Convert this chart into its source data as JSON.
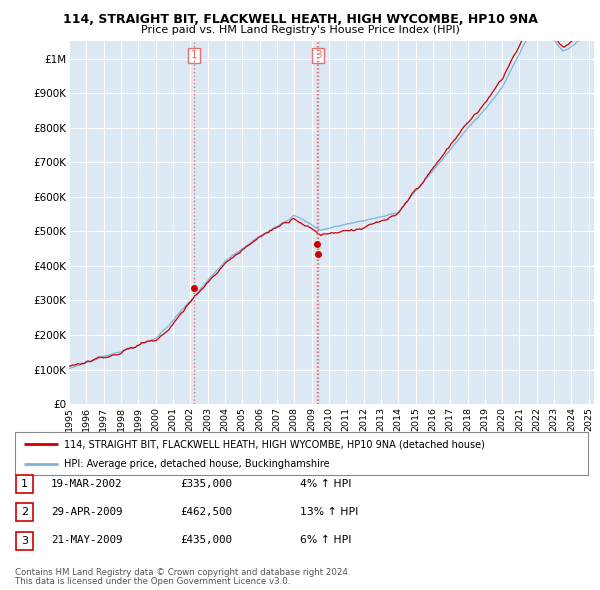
{
  "title": "114, STRAIGHT BIT, FLACKWELL HEATH, HIGH WYCOMBE, HP10 9NA",
  "subtitle": "Price paid vs. HM Land Registry's House Price Index (HPI)",
  "background_color": "#ffffff",
  "plot_bg_color": "#dce9f5",
  "grid_color": "#ffffff",
  "hpi_color": "#7eb3d8",
  "price_color": "#cc0000",
  "vline_color": "#e87070",
  "transactions": [
    {
      "num": 1,
      "date_label": "19-MAR-2002",
      "date_x": 2002.21,
      "price": 335000,
      "pct": "4%",
      "dir": "↑",
      "show_label": true
    },
    {
      "num": 2,
      "date_label": "29-APR-2009",
      "date_x": 2009.32,
      "price": 462500,
      "pct": "13%",
      "dir": "↑",
      "show_label": false
    },
    {
      "num": 3,
      "date_label": "21-MAY-2009",
      "date_x": 2009.38,
      "price": 435000,
      "pct": "6%",
      "dir": "↑",
      "show_label": true
    }
  ],
  "legend_property": "114, STRAIGHT BIT, FLACKWELL HEATH, HIGH WYCOMBE, HP10 9NA (detached house)",
  "legend_hpi": "HPI: Average price, detached house, Buckinghamshire",
  "footer1": "Contains HM Land Registry data © Crown copyright and database right 2024.",
  "footer2": "This data is licensed under the Open Government Licence v3.0.",
  "ylim": [
    0,
    1050000
  ],
  "yticks": [
    0,
    100000,
    200000,
    300000,
    400000,
    500000,
    600000,
    700000,
    800000,
    900000,
    1000000
  ],
  "ytick_labels": [
    "£0",
    "£100K",
    "£200K",
    "£300K",
    "£400K",
    "£500K",
    "£600K",
    "£700K",
    "£800K",
    "£900K",
    "£1M"
  ],
  "xtick_years": [
    1995,
    1996,
    1997,
    1998,
    1999,
    2000,
    2001,
    2002,
    2003,
    2004,
    2005,
    2006,
    2007,
    2008,
    2009,
    2010,
    2011,
    2012,
    2013,
    2014,
    2015,
    2016,
    2017,
    2018,
    2019,
    2020,
    2021,
    2022,
    2023,
    2024,
    2025
  ]
}
